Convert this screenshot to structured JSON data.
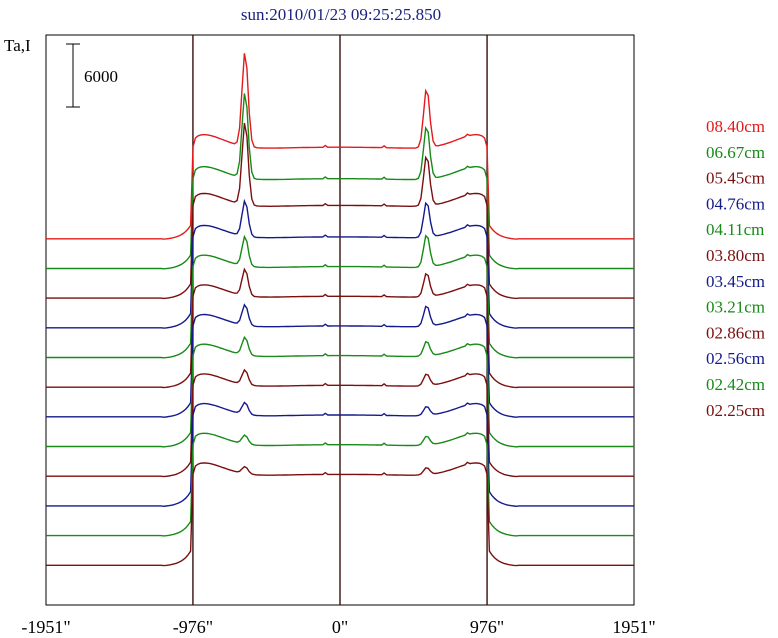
{
  "chart_data": {
    "type": "line",
    "title": "sun:2010/01/23 09:25:25.850",
    "ylabel": "Ta,I",
    "scale_bar_label": "6000",
    "x_ticks": [
      -1951,
      -976,
      0,
      976,
      1951
    ],
    "x_tick_labels": [
      "-1951\"",
      "-976\"",
      "0\"",
      "976\"",
      "1951\""
    ],
    "xlim": [
      -1951,
      1951
    ],
    "ylim": [
      0,
      96000
    ],
    "vertical_markers": [
      -976,
      0,
      976
    ],
    "grid": false,
    "legend_position": "right",
    "series": [
      {
        "name": "08.40cm",
        "color": "#e41a1c",
        "baseline": 61500,
        "limb_step": 9000,
        "disk_level": 11000,
        "west_peak": 16000,
        "east_peak": 10000
      },
      {
        "name": "06.67cm",
        "color": "#178a17",
        "baseline": 56500,
        "limb_step": 9000,
        "disk_level": 10500,
        "west_peak": 14500,
        "east_peak": 9000
      },
      {
        "name": "05.45cm",
        "color": "#7a0f0f",
        "baseline": 51500,
        "limb_step": 9500,
        "disk_level": 10500,
        "west_peak": 14000,
        "east_peak": 8500
      },
      {
        "name": "04.76cm",
        "color": "#141a8c",
        "baseline": 46500,
        "limb_step": 9500,
        "disk_level": 10000,
        "west_peak": 6000,
        "east_peak": 6000
      },
      {
        "name": "04.11cm",
        "color": "#178a17",
        "baseline": 41500,
        "limb_step": 9500,
        "disk_level": 10000,
        "west_peak": 5000,
        "east_peak": 5500
      },
      {
        "name": "03.80cm",
        "color": "#7a0f0f",
        "baseline": 36500,
        "limb_step": 9500,
        "disk_level": 10000,
        "west_peak": 4500,
        "east_peak": 4000
      },
      {
        "name": "03.45cm",
        "color": "#141a8c",
        "baseline": 31500,
        "limb_step": 9500,
        "disk_level": 10000,
        "west_peak": 3500,
        "east_peak": 3500
      },
      {
        "name": "03.21cm",
        "color": "#178a17",
        "baseline": 26500,
        "limb_step": 9500,
        "disk_level": 10000,
        "west_peak": 3000,
        "east_peak": 2500
      },
      {
        "name": "02.86cm",
        "color": "#7a0f0f",
        "baseline": 21500,
        "limb_step": 9500,
        "disk_level": 10000,
        "west_peak": 2500,
        "east_peak": 2000
      },
      {
        "name": "02.56cm",
        "color": "#141a8c",
        "baseline": 16500,
        "limb_step": 9500,
        "disk_level": 10000,
        "west_peak": 2000,
        "east_peak": 1500
      },
      {
        "name": "02.42cm",
        "color": "#178a17",
        "baseline": 11500,
        "limb_step": 9500,
        "disk_level": 10000,
        "west_peak": 1500,
        "east_peak": 1500
      },
      {
        "name": "02.25cm",
        "color": "#7a0f0f",
        "baseline": 6500,
        "limb_step": 9500,
        "disk_level": 10000,
        "west_peak": 1200,
        "east_peak": 1200
      }
    ]
  }
}
